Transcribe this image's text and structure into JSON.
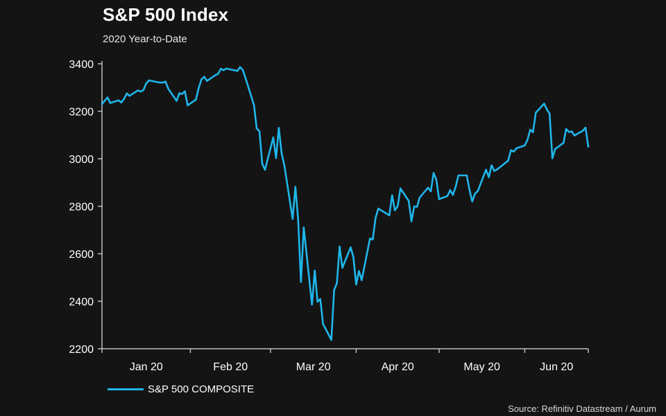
{
  "title": "S&P 500 Index",
  "subtitle": "2020 Year-to-Date",
  "source": "Source: Refinitiv Datastream / Aurum",
  "colors": {
    "background": "#141414",
    "line": "#1fb6ea",
    "axis": "#bfbfbf",
    "text": "#ffffff"
  },
  "chart_data": {
    "type": "line",
    "title": "S&P 500 Index",
    "subtitle": "2020 Year-to-Date",
    "xlabel": "",
    "ylabel": "",
    "ylim": [
      2200,
      3400
    ],
    "yticks": [
      "3400",
      "3200",
      "3000",
      "2800",
      "2600",
      "2400",
      "2200"
    ],
    "xticks": [
      "Jan 20",
      "Feb 20",
      "Mar 20",
      "Apr 20",
      "May 20",
      "Jun 20"
    ],
    "grid": false,
    "legend_position": "bottom-left",
    "series": [
      {
        "name": "S&P 500 COMPOSITE",
        "x": [
          "2019-12-31",
          "2020-01-02",
          "2020-01-03",
          "2020-01-06",
          "2020-01-07",
          "2020-01-08",
          "2020-01-09",
          "2020-01-10",
          "2020-01-13",
          "2020-01-14",
          "2020-01-15",
          "2020-01-16",
          "2020-01-17",
          "2020-01-21",
          "2020-01-22",
          "2020-01-23",
          "2020-01-24",
          "2020-01-27",
          "2020-01-28",
          "2020-01-29",
          "2020-01-30",
          "2020-01-31",
          "2020-02-03",
          "2020-02-04",
          "2020-02-05",
          "2020-02-06",
          "2020-02-07",
          "2020-02-10",
          "2020-02-11",
          "2020-02-12",
          "2020-02-13",
          "2020-02-14",
          "2020-02-18",
          "2020-02-19",
          "2020-02-20",
          "2020-02-21",
          "2020-02-24",
          "2020-02-25",
          "2020-02-26",
          "2020-02-27",
          "2020-02-28",
          "2020-03-02",
          "2020-03-03",
          "2020-03-04",
          "2020-03-05",
          "2020-03-06",
          "2020-03-09",
          "2020-03-10",
          "2020-03-11",
          "2020-03-12",
          "2020-03-13",
          "2020-03-16",
          "2020-03-17",
          "2020-03-18",
          "2020-03-19",
          "2020-03-20",
          "2020-03-23",
          "2020-03-24",
          "2020-03-25",
          "2020-03-26",
          "2020-03-27",
          "2020-03-30",
          "2020-03-31",
          "2020-04-01",
          "2020-04-02",
          "2020-04-03",
          "2020-04-06",
          "2020-04-07",
          "2020-04-08",
          "2020-04-09",
          "2020-04-13",
          "2020-04-14",
          "2020-04-15",
          "2020-04-16",
          "2020-04-17",
          "2020-04-20",
          "2020-04-21",
          "2020-04-22",
          "2020-04-23",
          "2020-04-24",
          "2020-04-27",
          "2020-04-28",
          "2020-04-29",
          "2020-04-30",
          "2020-05-01",
          "2020-05-04",
          "2020-05-05",
          "2020-05-06",
          "2020-05-07",
          "2020-05-08",
          "2020-05-11",
          "2020-05-12",
          "2020-05-13",
          "2020-05-14",
          "2020-05-15",
          "2020-05-18",
          "2020-05-19",
          "2020-05-20",
          "2020-05-21",
          "2020-05-22",
          "2020-05-26",
          "2020-05-27",
          "2020-05-28",
          "2020-05-29",
          "2020-06-01",
          "2020-06-02",
          "2020-06-03",
          "2020-06-04",
          "2020-06-05",
          "2020-06-08",
          "2020-06-09",
          "2020-06-10",
          "2020-06-11",
          "2020-06-12",
          "2020-06-15",
          "2020-06-16",
          "2020-06-17",
          "2020-06-18",
          "2020-06-19",
          "2020-06-22",
          "2020-06-23",
          "2020-06-24"
        ],
        "values": [
          3231,
          3258,
          3235,
          3246,
          3237,
          3253,
          3275,
          3265,
          3288,
          3283,
          3289,
          3317,
          3330,
          3321,
          3321,
          3325,
          3295,
          3244,
          3276,
          3273,
          3284,
          3225,
          3249,
          3298,
          3334,
          3345,
          3328,
          3352,
          3357,
          3379,
          3373,
          3380,
          3370,
          3386,
          3373,
          3338,
          3226,
          3128,
          3116,
          2979,
          2954,
          3090,
          3003,
          3130,
          3024,
          2972,
          2747,
          2882,
          2741,
          2481,
          2711,
          2386,
          2529,
          2398,
          2409,
          2305,
          2237,
          2447,
          2476,
          2630,
          2541,
          2627,
          2585,
          2471,
          2527,
          2489,
          2664,
          2660,
          2750,
          2790,
          2762,
          2846,
          2783,
          2800,
          2875,
          2823,
          2737,
          2799,
          2798,
          2837,
          2878,
          2863,
          2940,
          2912,
          2830,
          2843,
          2868,
          2848,
          2882,
          2930,
          2930,
          2870,
          2820,
          2853,
          2864,
          2954,
          2923,
          2972,
          2949,
          2955,
          2992,
          3036,
          3030,
          3044,
          3056,
          3081,
          3122,
          3112,
          3194,
          3232,
          3208,
          3190,
          3002,
          3041,
          3067,
          3125,
          3113,
          3115,
          3098,
          3118,
          3131,
          3051
        ]
      }
    ]
  }
}
